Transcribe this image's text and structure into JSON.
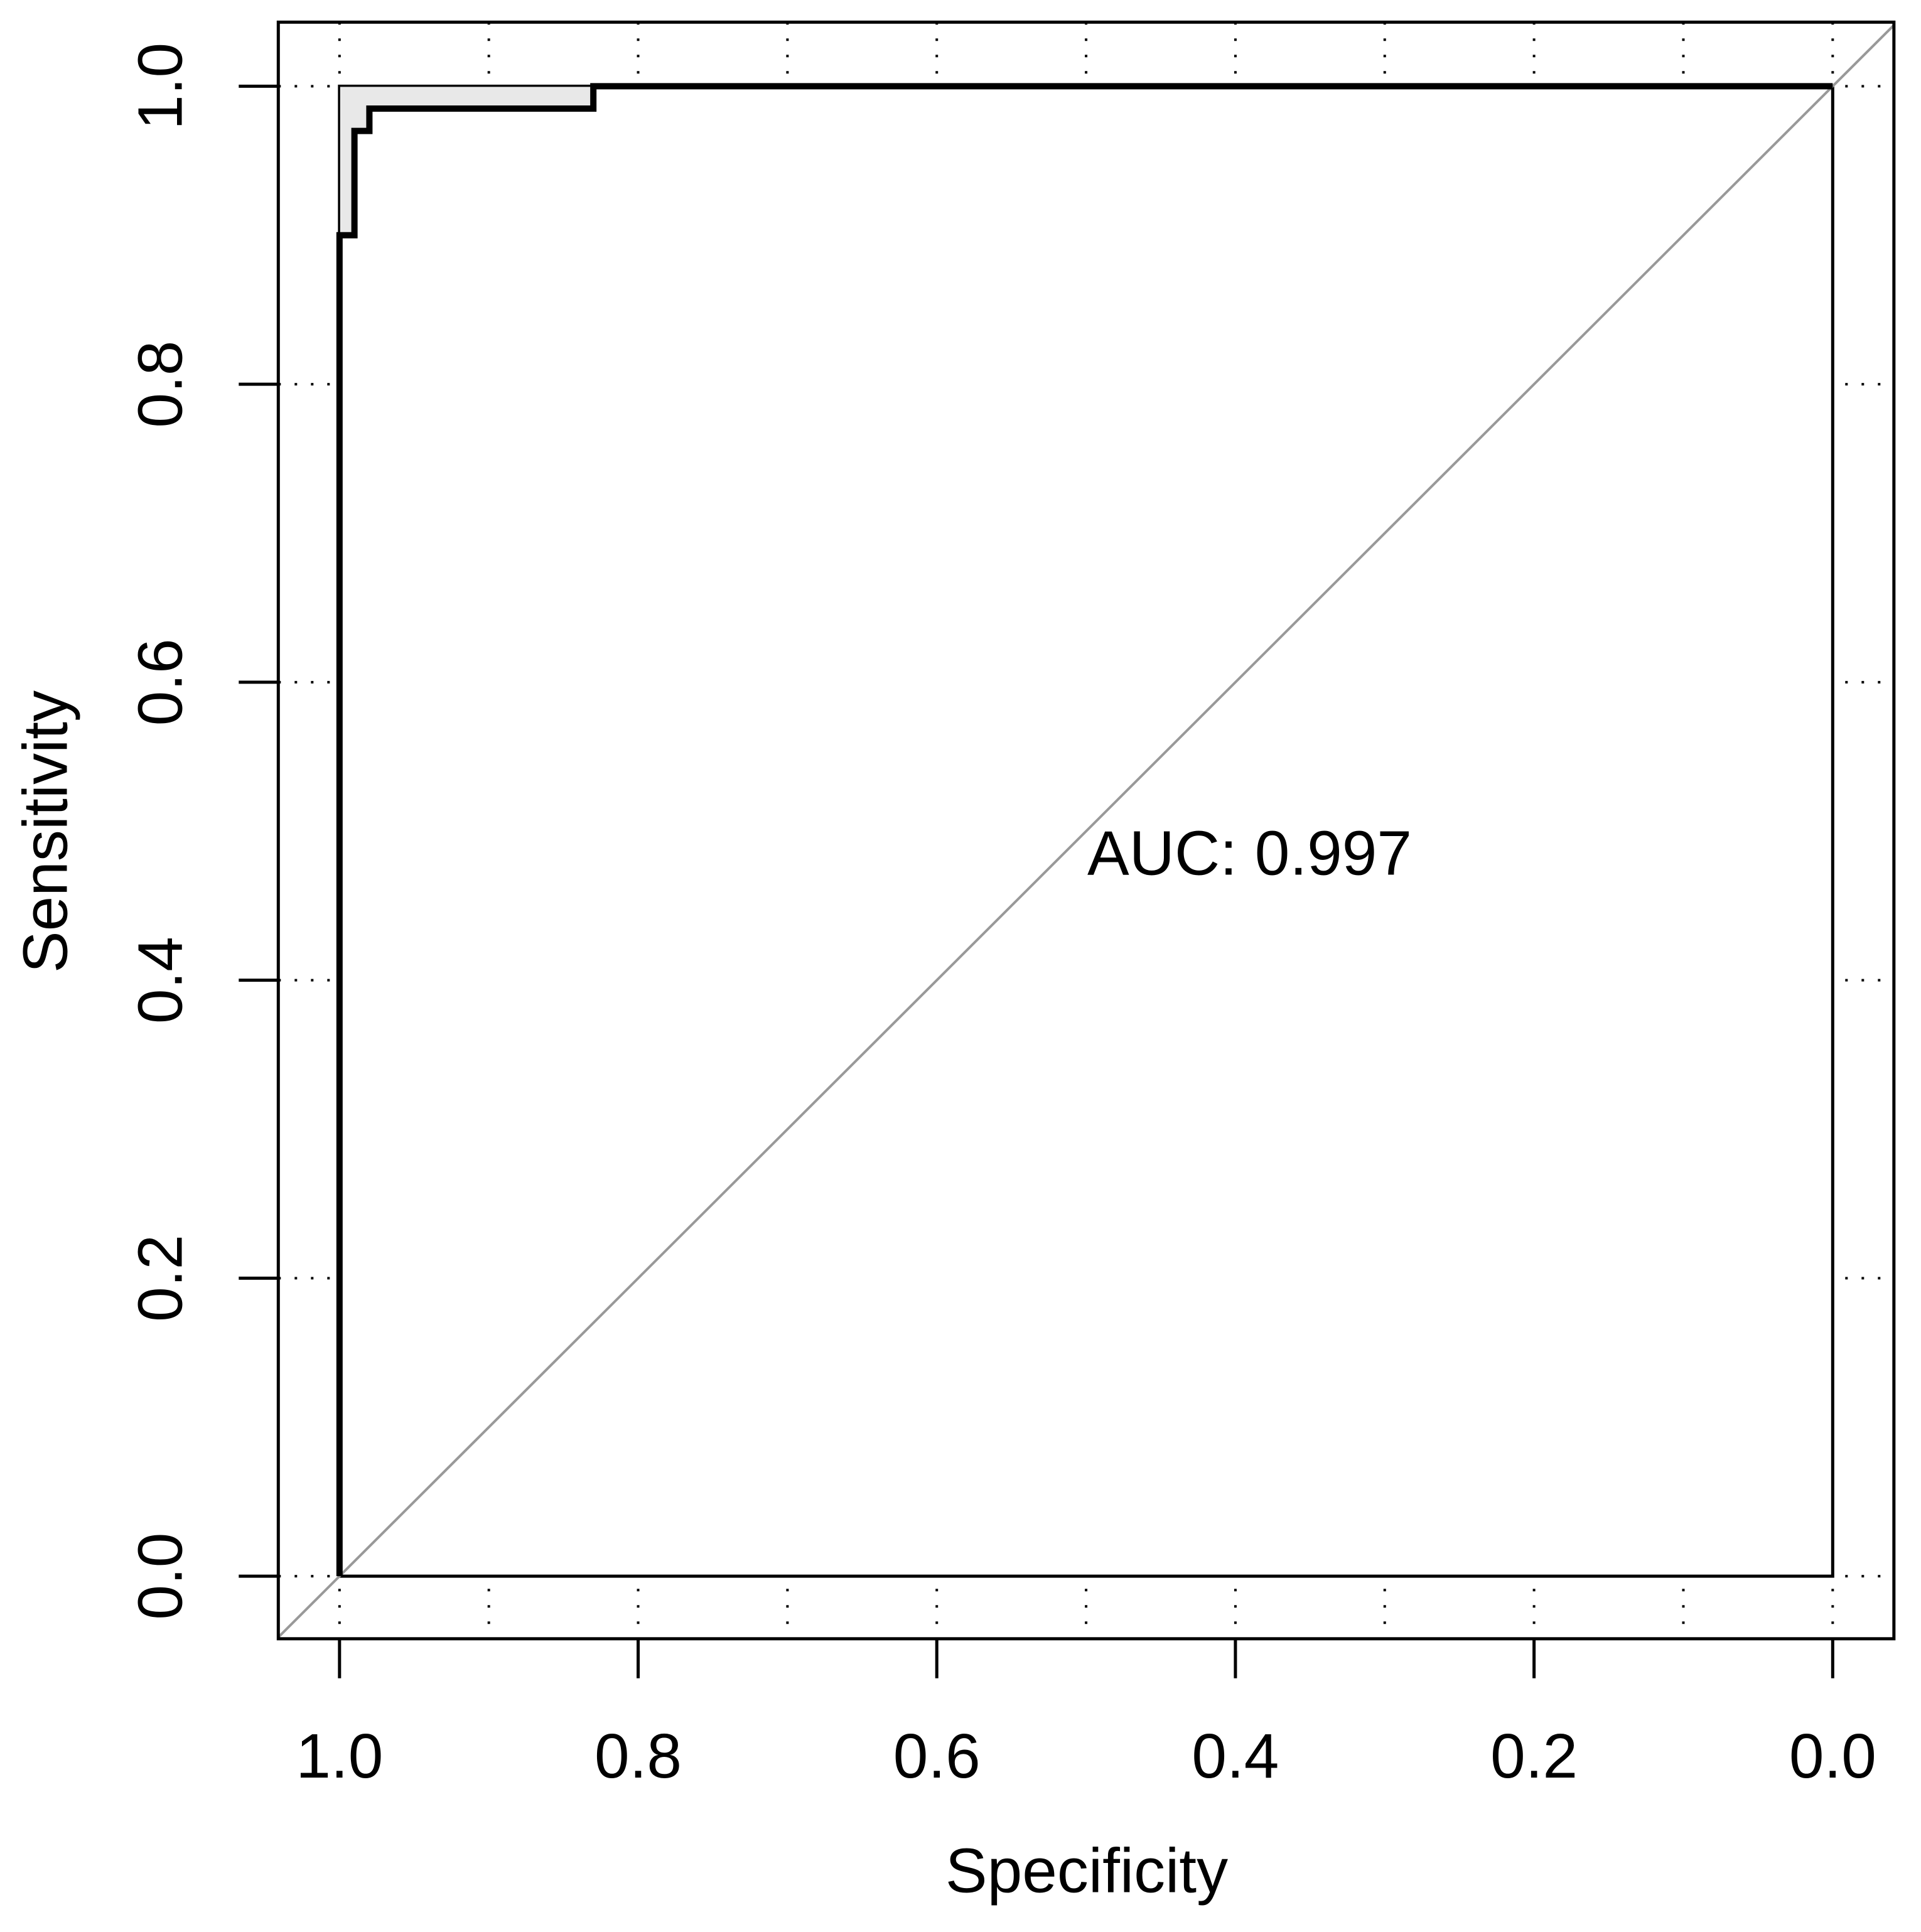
{
  "chart_data": {
    "type": "roc",
    "x_label": "Specificity",
    "y_label": "Sensitivity",
    "annotation": "AUC: 0.997",
    "xlim": [
      1.041,
      -0.041
    ],
    "ylim": [
      -0.042,
      1.043
    ],
    "xticks": [
      {
        "value": 1,
        "label": "1.0"
      },
      {
        "value": 0.8,
        "label": "0.8"
      },
      {
        "value": 0.6,
        "label": "0.6"
      },
      {
        "value": 0.4,
        "label": "0.4"
      },
      {
        "value": 0.2,
        "label": "0.2"
      },
      {
        "value": 0,
        "label": "0.0"
      }
    ],
    "yticks": [
      {
        "value": 0,
        "label": "0.0"
      },
      {
        "value": 0.2,
        "label": "0.2"
      },
      {
        "value": 0.4,
        "label": "0.4"
      },
      {
        "value": 0.6,
        "label": "0.6"
      },
      {
        "value": 0.8,
        "label": "0.8"
      },
      {
        "value": 1,
        "label": "1.0"
      }
    ],
    "xgrid": [
      1,
      0.9,
      0.8,
      0.7,
      0.6,
      0.5,
      0.4,
      0.3,
      0.2,
      0.1,
      0
    ],
    "grid": true,
    "abline": {
      "intercept": 1,
      "slope": -1,
      "color": "#999999"
    },
    "ci_band": {
      "color": "#e8e8e8",
      "x": [
        1,
        0.99,
        0.99,
        0.98,
        0.98,
        0.83
      ],
      "lower": [
        0.9,
        0.9,
        0.97,
        0.97,
        0.985,
        0.985
      ],
      "upper": [
        1,
        1,
        1,
        1,
        1,
        1
      ]
    },
    "series": [
      {
        "color": "#000000",
        "x": [
          1,
          1,
          0.99,
          0.99,
          0.98,
          0.98,
          0.83,
          0.83,
          0
        ],
        "values": [
          0,
          0.9,
          0.9,
          0.97,
          0.97,
          0.985,
          0.985,
          1,
          1
        ]
      }
    ]
  }
}
